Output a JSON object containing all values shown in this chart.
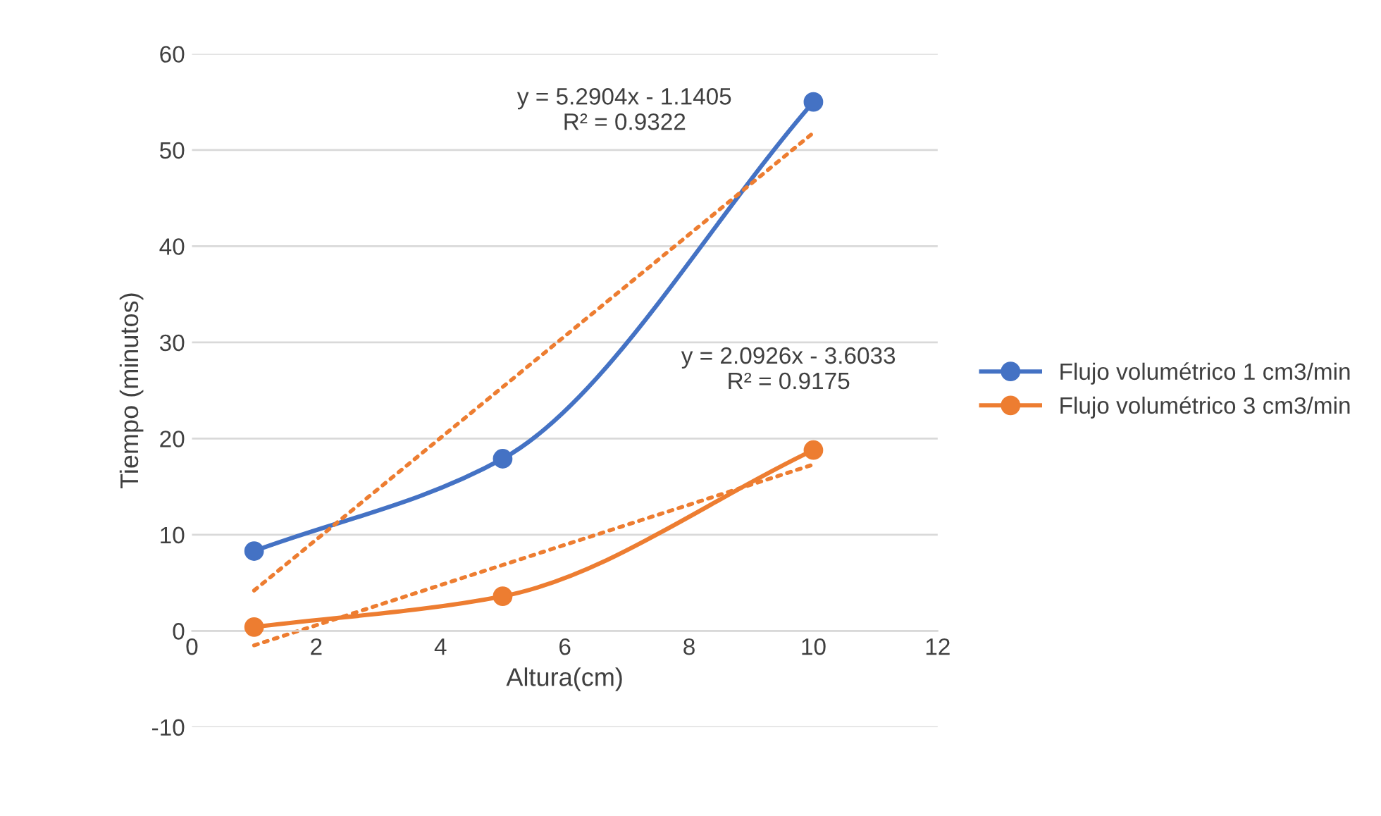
{
  "chart_data": {
    "type": "line",
    "xlabel": "Altura(cm)",
    "ylabel": "Tiempo (minutos)",
    "xlim": [
      0,
      12
    ],
    "xticks": [
      0,
      2,
      4,
      6,
      8,
      10,
      12
    ],
    "ylim": [
      -10,
      60
    ],
    "yticks": [
      -10,
      0,
      10,
      20,
      30,
      40,
      50,
      60
    ],
    "grid": "y",
    "legend": "right",
    "marker": "circle",
    "line_style": "solid",
    "series": [
      {
        "name": "Flujo volumétrico 1 cm3/min",
        "color": "#4472c4",
        "x": [
          1,
          5,
          10
        ],
        "values": [
          8.3,
          17.9,
          55
        ]
      },
      {
        "name": "Flujo volumétrico 3 cm3/min",
        "color": "#ed7d31",
        "x": [
          1,
          5,
          10
        ],
        "values": [
          0.4,
          3.6,
          18.8
        ]
      },
      {
        "type": "line",
        "color": "#ed7d31",
        "marker": "none",
        "line_style": "dotted",
        "x": [
          1,
          10
        ],
        "values": [
          4.2,
          51.8
        ]
      },
      {
        "type": "line",
        "color": "#ed7d31",
        "marker": "none",
        "line_style": "dotted",
        "x": [
          1,
          10
        ],
        "values": [
          -1.5,
          17.3
        ]
      }
    ],
    "annotations": [
      "y = 5.2904x - 1.1405\nR² = 0.9322",
      "y = 2.0926x - 3.6033\nR² = 0.9175"
    ]
  }
}
